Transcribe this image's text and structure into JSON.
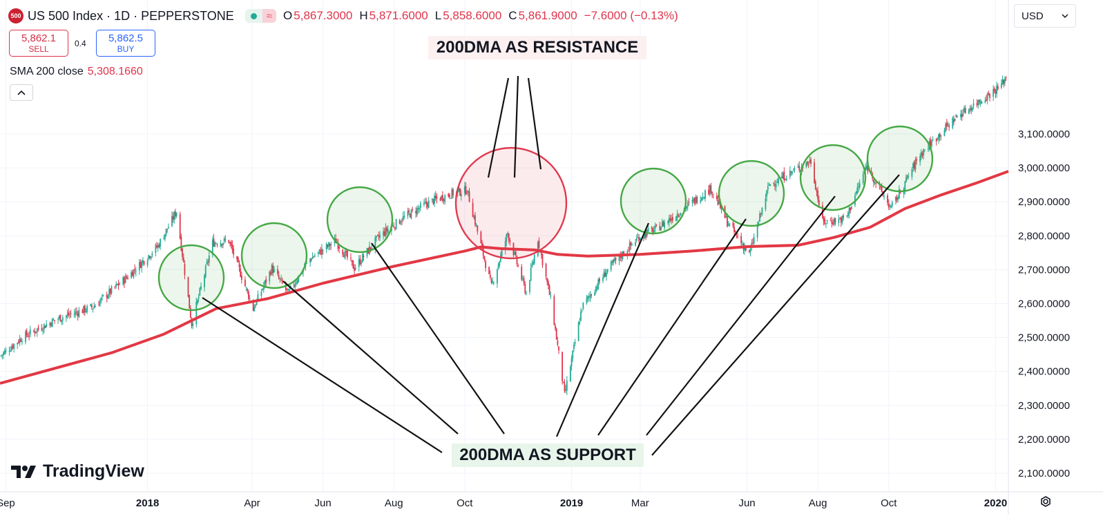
{
  "header": {
    "logo_text": "500",
    "title": "US 500 Index · 1D · PEPPERSTONE",
    "market_wave": "≈",
    "ohlc": [
      {
        "label": "O",
        "value": "5,867.3000"
      },
      {
        "label": "H",
        "value": "5,871.6000"
      },
      {
        "label": "L",
        "value": "5,858.6000"
      },
      {
        "label": "C",
        "value": "5,861.9000"
      }
    ],
    "change": "−7.6000 (−0.13%)"
  },
  "trade": {
    "sell_price": "5,862.1",
    "sell_label": "SELL",
    "spread": "0.4",
    "buy_price": "5,862.5",
    "buy_label": "BUY"
  },
  "indicator": {
    "name": "SMA 200 close",
    "value": "5,308.1660"
  },
  "currency": {
    "selected": "USD"
  },
  "annotations": {
    "resistance": "200DMA AS RESISTANCE",
    "support": "200DMA AS SUPPORT"
  },
  "brand": "TradingView",
  "colors": {
    "up": "#22ab94",
    "down": "#e0334b",
    "sma": "#e23844",
    "support_circle": "#45a845",
    "resistance_circle": "#e0394f"
  },
  "chart_data": {
    "type": "line",
    "title": "",
    "xlabel": "",
    "ylabel": "",
    "xlim": [
      "2017-08-27",
      "2020-01-12"
    ],
    "ylim": [
      2045,
      3495
    ],
    "y_ticks": [
      2100,
      2200,
      2300,
      2400,
      2500,
      2600,
      2700,
      2800,
      2900,
      3000,
      3100
    ],
    "y_tick_labels": [
      "2,100.0000",
      "2,200.0000",
      "2,300.0000",
      "2,400.0000",
      "2,500.0000",
      "2,600.0000",
      "2,700.0000",
      "2,800.0000",
      "2,900.0000",
      "3,000.0000",
      "3,100.0000"
    ],
    "x_ticks": [
      {
        "date": "2017-09-01",
        "label": "Sep",
        "bold": false
      },
      {
        "date": "2018-01-01",
        "label": "2018",
        "bold": true
      },
      {
        "date": "2018-04-01",
        "label": "Apr",
        "bold": false
      },
      {
        "date": "2018-06-01",
        "label": "Jun",
        "bold": false
      },
      {
        "date": "2018-08-01",
        "label": "Aug",
        "bold": false
      },
      {
        "date": "2018-10-01",
        "label": "Oct",
        "bold": false
      },
      {
        "date": "2019-01-01",
        "label": "2019",
        "bold": true
      },
      {
        "date": "2019-03-01",
        "label": "Mar",
        "bold": false
      },
      {
        "date": "2019-06-01",
        "label": "Jun",
        "bold": false
      },
      {
        "date": "2019-08-01",
        "label": "Aug",
        "bold": false
      },
      {
        "date": "2019-10-01",
        "label": "Oct",
        "bold": false
      },
      {
        "date": "2020-01-01",
        "label": "2020",
        "bold": true
      }
    ],
    "series": [
      {
        "name": "US 500 Index",
        "style": "candles",
        "points": [
          [
            "2017-08-27",
            2445
          ],
          [
            "2017-09-15",
            2500
          ],
          [
            "2017-10-15",
            2555
          ],
          [
            "2017-11-15",
            2590
          ],
          [
            "2017-12-15",
            2680
          ],
          [
            "2018-01-10",
            2770
          ],
          [
            "2018-01-26",
            2872
          ],
          [
            "2018-02-08",
            2540
          ],
          [
            "2018-02-26",
            2780
          ],
          [
            "2018-03-12",
            2785
          ],
          [
            "2018-04-02",
            2585
          ],
          [
            "2018-04-18",
            2705
          ],
          [
            "2018-05-02",
            2630
          ],
          [
            "2018-05-20",
            2730
          ],
          [
            "2018-06-12",
            2785
          ],
          [
            "2018-06-28",
            2705
          ],
          [
            "2018-07-20",
            2800
          ],
          [
            "2018-08-10",
            2855
          ],
          [
            "2018-09-01",
            2900
          ],
          [
            "2018-09-20",
            2925
          ],
          [
            "2018-10-03",
            2935
          ],
          [
            "2018-10-24",
            2650
          ],
          [
            "2018-11-07",
            2808
          ],
          [
            "2018-11-23",
            2630
          ],
          [
            "2018-12-03",
            2790
          ],
          [
            "2018-12-15",
            2595
          ],
          [
            "2018-12-26",
            2330
          ],
          [
            "2019-01-10",
            2590
          ],
          [
            "2019-02-01",
            2700
          ],
          [
            "2019-03-01",
            2800
          ],
          [
            "2019-03-15",
            2820
          ],
          [
            "2019-05-01",
            2940
          ],
          [
            "2019-05-15",
            2840
          ],
          [
            "2019-06-03",
            2745
          ],
          [
            "2019-06-20",
            2950
          ],
          [
            "2019-07-26",
            3020
          ],
          [
            "2019-08-05",
            2840
          ],
          [
            "2019-08-25",
            2850
          ],
          [
            "2019-09-12",
            3005
          ],
          [
            "2019-10-03",
            2880
          ],
          [
            "2019-10-28",
            3040
          ],
          [
            "2019-11-28",
            3150
          ],
          [
            "2019-12-15",
            3190
          ],
          [
            "2020-01-05",
            3240
          ],
          [
            "2020-01-12",
            3280
          ]
        ]
      },
      {
        "name": "SMA 200 close",
        "style": "line",
        "points": [
          [
            "2017-08-27",
            2365
          ],
          [
            "2017-12-01",
            2455
          ],
          [
            "2018-01-15",
            2510
          ],
          [
            "2018-03-01",
            2585
          ],
          [
            "2018-04-15",
            2615
          ],
          [
            "2018-06-01",
            2660
          ],
          [
            "2018-08-01",
            2710
          ],
          [
            "2018-10-01",
            2755
          ],
          [
            "2018-10-15",
            2767
          ],
          [
            "2018-11-01",
            2762
          ],
          [
            "2018-12-01",
            2758
          ],
          [
            "2018-12-20",
            2745
          ],
          [
            "2019-01-15",
            2740
          ],
          [
            "2019-03-01",
            2745
          ],
          [
            "2019-04-15",
            2755
          ],
          [
            "2019-06-01",
            2768
          ],
          [
            "2019-07-15",
            2772
          ],
          [
            "2019-08-15",
            2795
          ],
          [
            "2019-09-15",
            2825
          ],
          [
            "2019-10-15",
            2880
          ],
          [
            "2019-11-15",
            2920
          ],
          [
            "2019-12-15",
            2955
          ],
          [
            "2020-01-12",
            2990
          ]
        ]
      }
    ]
  }
}
